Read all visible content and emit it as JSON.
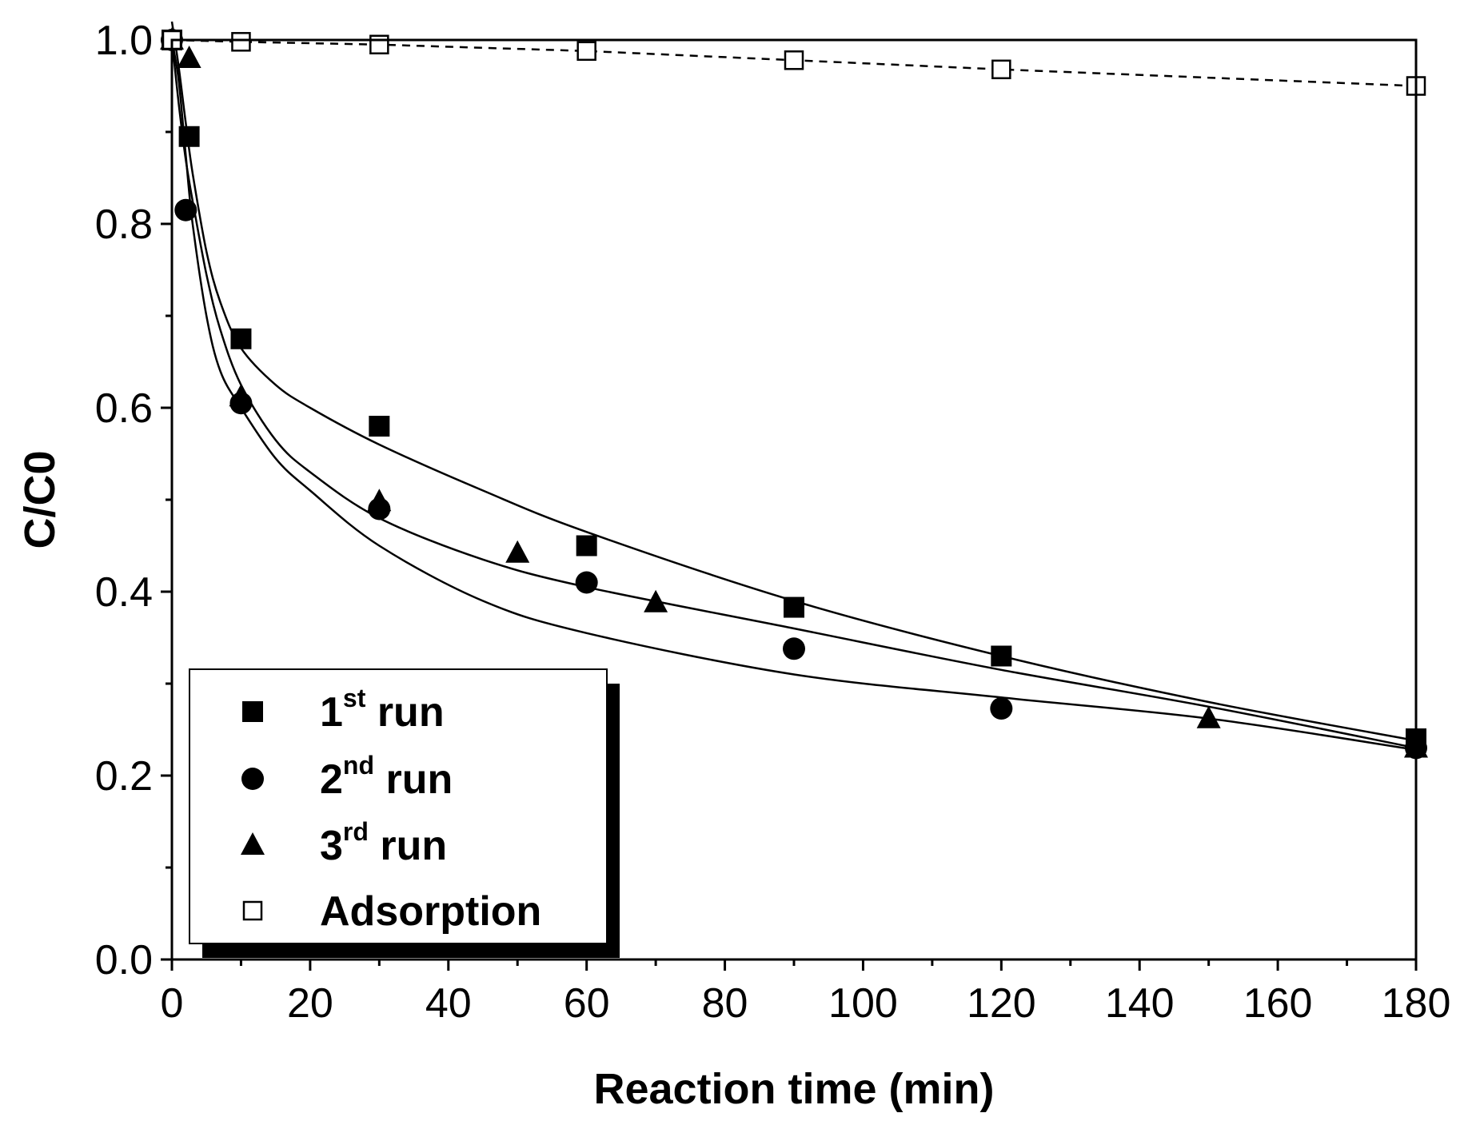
{
  "chart_data": {
    "type": "scatter",
    "xlabel": "Reaction time (min)",
    "ylabel": "C/C0",
    "xlim": [
      0,
      180
    ],
    "ylim": [
      0.0,
      1.0
    ],
    "x_ticks": [
      "0",
      "20",
      "40",
      "60",
      "80",
      "100",
      "120",
      "140",
      "160",
      "180"
    ],
    "y_ticks": [
      "0.0",
      "0.2",
      "0.4",
      "0.6",
      "0.8",
      "1.0"
    ],
    "grid": false,
    "legend_position": "bottom-left",
    "series": [
      {
        "name": "1st run",
        "label_main": "1",
        "label_sup": "st",
        "label_tail": " run",
        "marker": "filled-square",
        "line": "solid",
        "x": [
          0,
          2.5,
          10,
          30,
          60,
          90,
          120,
          180
        ],
        "y": [
          1.0,
          0.895,
          0.675,
          0.58,
          0.45,
          0.383,
          0.33,
          0.24
        ],
        "fit_x": [
          0,
          1,
          2,
          3,
          5,
          7,
          10,
          15,
          20,
          30,
          45,
          60,
          90,
          120,
          150,
          180
        ],
        "fit_y": [
          1.02,
          0.97,
          0.91,
          0.855,
          0.77,
          0.715,
          0.665,
          0.625,
          0.6,
          0.56,
          0.51,
          0.465,
          0.39,
          0.33,
          0.28,
          0.238
        ]
      },
      {
        "name": "2nd run",
        "label_main": "2",
        "label_sup": "nd",
        "label_tail": " run",
        "marker": "filled-circle",
        "line": "solid",
        "x": [
          0,
          2,
          10,
          30,
          60,
          90,
          120,
          180
        ],
        "y": [
          1.0,
          0.815,
          0.605,
          0.49,
          0.41,
          0.338,
          0.273,
          0.23
        ],
        "fit_x": [
          0,
          1,
          2,
          3,
          5,
          7,
          10,
          15,
          20,
          30,
          45,
          60,
          90,
          120,
          150,
          180
        ],
        "fit_y": [
          1.0,
          0.93,
          0.87,
          0.825,
          0.745,
          0.685,
          0.625,
          0.565,
          0.53,
          0.48,
          0.435,
          0.405,
          0.36,
          0.315,
          0.275,
          0.23
        ]
      },
      {
        "name": "3rd run",
        "label_main": "3",
        "label_sup": "rd",
        "label_tail": " run",
        "marker": "filled-triangle",
        "line": "solid",
        "x": [
          0,
          2.5,
          10,
          30,
          50,
          70,
          150,
          180
        ],
        "y": [
          1.0,
          0.98,
          0.612,
          0.498,
          0.442,
          0.388,
          0.262,
          0.23
        ],
        "fit_x": [
          0,
          1,
          2,
          3,
          5,
          7,
          10,
          15,
          20,
          30,
          45,
          60,
          90,
          120,
          150,
          180
        ],
        "fit_y": [
          1.0,
          0.955,
          0.875,
          0.8,
          0.7,
          0.64,
          0.6,
          0.545,
          0.51,
          0.45,
          0.39,
          0.355,
          0.31,
          0.285,
          0.262,
          0.228
        ]
      },
      {
        "name": "Adsorption",
        "label_main": "Adsorption",
        "label_sup": "",
        "label_tail": "",
        "marker": "open-square",
        "line": "dashed",
        "x": [
          0,
          10,
          30,
          60,
          90,
          120,
          180
        ],
        "y": [
          1.0,
          0.998,
          0.995,
          0.988,
          0.978,
          0.968,
          0.95
        ]
      }
    ]
  }
}
